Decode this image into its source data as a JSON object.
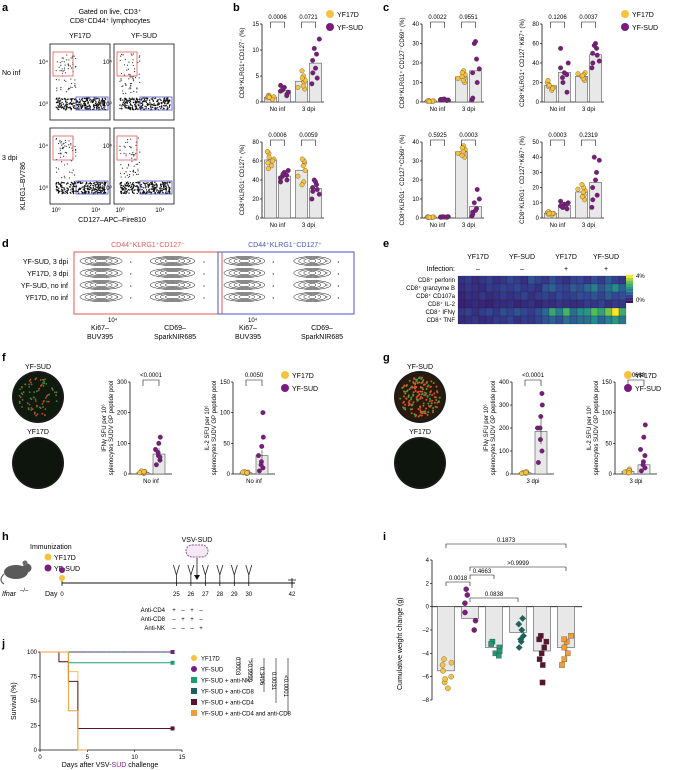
{
  "colors": {
    "yf17d": "#F7C23E",
    "yfsud": "#7A1B7E",
    "yfsud_nk": "#1E9A74",
    "yfsud_cd8": "#1F5F5C",
    "yfsud_cd4": "#5A1433",
    "yfsud_cd4cd8": "#F29D3A",
    "gate_red": "#E05A5A",
    "gate_blue": "#4A56C8",
    "axis": "#111111"
  },
  "legend": {
    "yf17d": "YF17D",
    "yfsud": "YF-SUD"
  },
  "panel_a": {
    "letter": "a",
    "title_line1": "Gated on live, CD3⁺",
    "title_line2": "CD8⁺CD44⁺ lymphocytes",
    "col1": "YF17D",
    "col2": "YF-SUD",
    "row1": "No inf",
    "row2": "3 dpi",
    "ylabel": "KLRG1–BV786",
    "xlabel": "CD127–APC–Fire810",
    "tick_hi": "10⁴",
    "tick_lo": "10⁰",
    "xtick_lo": "10⁰",
    "xtick_hi": "10⁴"
  },
  "panel_b": {
    "letter": "b",
    "groups": [
      "No inf",
      "3 dpi"
    ],
    "top": {
      "ylabel": "CD8⁺KLRG1⁺CD127⁻ (%)",
      "ticks": [
        "0",
        "5",
        "10",
        "15"
      ],
      "ymax": 15,
      "pvals": [
        "0.0006",
        "0.0721"
      ],
      "yf17d": {
        "no_inf": [
          0.6,
          1.0,
          1.3,
          0.8,
          1.2,
          0.5,
          1.0,
          0.9
        ],
        "dpi3": [
          2.5,
          3.8,
          4.2,
          5.0,
          6.0,
          3.1,
          4.6,
          2.8
        ]
      },
      "yfsud": {
        "no_inf": [
          1.5,
          2.3,
          2.8,
          1.9,
          3.2,
          2.1,
          2.6,
          1.2
        ],
        "dpi3": [
          3.5,
          5.6,
          8.0,
          9.2,
          10.3,
          12.1,
          4.6,
          6.5
        ]
      }
    },
    "bottom": {
      "ylabel": "CD8⁺KLRG1⁻CD127⁺ (%)",
      "ticks": [
        "0",
        "20",
        "40",
        "60",
        "80"
      ],
      "ymax": 80,
      "pvals": [
        "0.0006",
        "0.0059"
      ],
      "yf17d": {
        "no_inf": [
          55,
          62,
          68,
          70,
          52,
          60,
          58,
          64
        ],
        "dpi3": [
          58,
          60,
          50,
          38,
          35,
          55,
          62,
          44
        ]
      },
      "yfsud": {
        "no_inf": [
          40,
          44,
          48,
          50,
          38,
          42,
          46,
          45
        ],
        "dpi3": [
          20,
          28,
          32,
          35,
          40,
          25,
          30,
          38
        ]
      }
    }
  },
  "panel_c": {
    "letter": "c",
    "groups": [
      "No inf",
      "3 dpi"
    ],
    "p1": {
      "ylabel": "CD8⁺KLRG1⁺ CD127⁻CD69⁺ (%)",
      "ticks": [
        "0",
        "10",
        "20",
        "30",
        "40"
      ],
      "ymax": 40,
      "pvals": [
        "0.0022",
        "0.9551"
      ],
      "yf17d": {
        "no_inf": [
          0.3,
          0.5,
          0.7,
          0.4,
          0.6,
          0.5,
          0.8,
          0.3
        ],
        "dpi3": [
          10,
          12,
          14,
          16,
          13,
          11,
          15,
          12
        ]
      },
      "yfsud": {
        "no_inf": [
          0.8,
          1.2,
          1.5,
          1.0,
          1.3,
          1.1,
          1.4,
          0.9
        ],
        "dpi3": [
          1,
          2,
          15,
          22,
          30,
          17,
          10,
          31
        ]
      }
    },
    "p2": {
      "ylabel": "CD8⁺KLRG1⁺ CD127⁻Ki67⁺ (%)",
      "ticks": [
        "0",
        "20",
        "40",
        "60",
        "80"
      ],
      "ymax": 80,
      "pvals": [
        "0.1206",
        "0.0037"
      ],
      "yf17d": {
        "no_inf": [
          12,
          15,
          18,
          20,
          16,
          14,
          22,
          17
        ],
        "dpi3": [
          22,
          25,
          30,
          28,
          26,
          24,
          27,
          29
        ]
      },
      "yfsud": {
        "no_inf": [
          10,
          25,
          30,
          40,
          55,
          35,
          20,
          28
        ],
        "dpi3": [
          35,
          40,
          50,
          55,
          58,
          42,
          48,
          60
        ]
      }
    },
    "p3": {
      "ylabel": "CD8⁺KLRG1⁻ CD127⁺CD69⁺ (%)",
      "ticks": [
        "0",
        "10",
        "20",
        "30",
        "40"
      ],
      "ymax": 40,
      "pvals": [
        "0.5925",
        "0.0003"
      ],
      "yf17d": {
        "no_inf": [
          0.3,
          0.5,
          0.4,
          0.6,
          0.3,
          0.5,
          0.4,
          0.4
        ],
        "dpi3": [
          32,
          34,
          36,
          38,
          33,
          35,
          37,
          34
        ]
      },
      "yfsud": {
        "no_inf": [
          0.4,
          0.6,
          0.5,
          0.7,
          0.4,
          0.5,
          0.6,
          0.5
        ],
        "dpi3": [
          1,
          2,
          3,
          5,
          8,
          10,
          15,
          4
        ]
      }
    },
    "p4": {
      "ylabel": "CD8⁺KLRG1⁻ CD127⁺Ki67⁺ (%)",
      "ticks": [
        "0",
        "10",
        "20",
        "30",
        "40",
        "50"
      ],
      "ymax": 50,
      "pvals": [
        "0.0003",
        "0.2319"
      ],
      "yf17d": {
        "no_inf": [
          2,
          3,
          4,
          3.5,
          2.5,
          3,
          4,
          3
        ],
        "dpi3": [
          12,
          15,
          18,
          20,
          22,
          17,
          14,
          19
        ]
      },
      "yfsud": {
        "no_inf": [
          6,
          7,
          9,
          10,
          8,
          11,
          7,
          9
        ],
        "dpi3": [
          7,
          12,
          20,
          30,
          40,
          38,
          15,
          25
        ]
      }
    }
  },
  "panel_d": {
    "letter": "d",
    "rows": [
      "YF-SUD, 3 dpi",
      "YF17D, 3 dpi",
      "YF-SUD, no inf",
      "YF17D, no inf"
    ],
    "gate1": "CD44⁺KLRG1⁺CD127⁻",
    "gate2": "CD44⁺KLRG1⁻CD127⁺",
    "x1": "Ki67–",
    "x1b": "BUV395",
    "x2": "CD69–",
    "x2b": "SparkNIR685",
    "tick": "10⁴"
  },
  "panel_e": {
    "letter": "e",
    "cols": [
      "YF17D",
      "YF-SUD",
      "YF17D",
      "YF-SUD"
    ],
    "infection_label": "Infection:",
    "infection": [
      "–",
      "–",
      "+",
      "+"
    ],
    "rows": [
      "CD8⁺ perforin",
      "CD8⁺ granzyme B",
      "CD8⁺ CD107a",
      "CD8⁺ IL-2",
      "CD8⁺ IFNγ",
      "CD8⁺ TNF"
    ],
    "scale_max": "4%",
    "scale_min": "0%",
    "values": [
      [
        0.6,
        0.8,
        0.5,
        0.7,
        0.9,
        0.6,
        0.7,
        1.0,
        0.8,
        0.6,
        1.2,
        0.9,
        0.7,
        1.1,
        0.8,
        0.6,
        0.9,
        1.0,
        0.7,
        1.1,
        0.8,
        1.3,
        0.9,
        0.7
      ],
      [
        0.5,
        0.7,
        0.6,
        0.5,
        0.8,
        0.7,
        0.9,
        0.8,
        1.0,
        0.7,
        0.8,
        0.6,
        1.2,
        1.4,
        1.0,
        0.9,
        1.3,
        1.1,
        1.5,
        1.8,
        1.2,
        1.6,
        2.0,
        1.4
      ],
      [
        0.4,
        0.6,
        0.5,
        0.7,
        0.5,
        0.6,
        0.8,
        0.6,
        0.7,
        0.9,
        0.6,
        0.8,
        0.9,
        0.7,
        1.0,
        0.8,
        0.9,
        1.1,
        1.0,
        1.2,
        0.9,
        1.3,
        1.0,
        1.1
      ],
      [
        0.3,
        0.4,
        0.5,
        0.4,
        0.3,
        0.5,
        0.5,
        0.6,
        0.4,
        0.5,
        0.6,
        0.4,
        0.6,
        0.5,
        0.7,
        0.6,
        0.5,
        0.6,
        0.8,
        0.7,
        0.9,
        0.6,
        0.8,
        0.7
      ],
      [
        0.7,
        0.9,
        0.6,
        0.8,
        1.0,
        0.7,
        1.1,
        0.9,
        1.2,
        1.0,
        0.8,
        1.1,
        1.5,
        2.5,
        1.8,
        2.8,
        1.6,
        2.0,
        2.2,
        3.0,
        2.4,
        3.2,
        4.0,
        2.6
      ],
      [
        0.5,
        0.6,
        0.7,
        0.5,
        0.6,
        0.8,
        0.7,
        0.9,
        0.6,
        0.8,
        0.7,
        0.9,
        1.2,
        1.4,
        1.1,
        1.6,
        1.3,
        1.5,
        1.6,
        2.0,
        1.4,
        1.8,
        2.2,
        1.7
      ]
    ]
  },
  "panel_f": {
    "letter": "f",
    "well1": "YF-SUD",
    "well2": "YF17D",
    "p1": {
      "ylabel": "IFNγ SFU per 10⁶ splenocytes SUDV GP peptide pool",
      "ticks": [
        "0",
        "100",
        "200",
        "300"
      ],
      "ymax": 300,
      "pval": "<0.0001",
      "group": "No inf",
      "yf17d": [
        2,
        5,
        8,
        3,
        10,
        6,
        4,
        7
      ],
      "yfsud": [
        30,
        45,
        60,
        80,
        100,
        120,
        55,
        70
      ],
      "bar_yf17d": 5,
      "bar_yfsud": 65
    },
    "p2": {
      "ylabel": "IL-2 SFU per 10⁶ splenocytes SUDV GP peptide pool",
      "ticks": [
        "0",
        "50",
        "100",
        "150"
      ],
      "ymax": 150,
      "pval": "0.0050",
      "group": "No inf",
      "yf17d": [
        1,
        2,
        3,
        2,
        4,
        1,
        3,
        2
      ],
      "yfsud": [
        5,
        10,
        20,
        30,
        45,
        60,
        100,
        15
      ],
      "bar_yf17d": 2,
      "bar_yfsud": 30
    }
  },
  "panel_g": {
    "letter": "g",
    "well1": "YF-SUD",
    "well2": "YF17D",
    "p1": {
      "ylabel": "IFNγ SFU per 10⁶ splenocytes SUDV GP peptide pool",
      "ticks": [
        "0",
        "100",
        "200",
        "300",
        "400"
      ],
      "ymax": 400,
      "pval": "<0.0001",
      "group": "3 dpi",
      "yf17d": [
        3,
        5,
        8,
        4,
        6,
        10,
        2,
        7
      ],
      "yfsud": [
        50,
        100,
        150,
        200,
        250,
        300,
        350,
        200
      ],
      "bar_yf17d": 5,
      "bar_yfsud": 185
    },
    "p2": {
      "ylabel": "IL-2 SFU per 10⁶ splenocytes SUDV GP peptide pool",
      "ticks": [
        "0",
        "50",
        "100",
        "150"
      ],
      "ymax": 150,
      "pval": "0.0668",
      "group": "3 dpi",
      "yf17d": [
        2,
        3,
        5,
        8,
        4,
        6,
        3,
        2
      ],
      "yfsud": [
        5,
        10,
        20,
        40,
        60,
        80,
        30,
        15
      ],
      "bar_yf17d": 4,
      "bar_yfsud": 15
    }
  },
  "panel_h": {
    "letter": "h",
    "immunization": "Immunization",
    "leg1": "YF17D",
    "leg2": "YF-SUD",
    "challenge": "VSV-SUD",
    "mouse": "Ifnar",
    "mouse_sup": "–/–",
    "day_label": "Day",
    "days": [
      "0",
      "25",
      "26",
      "27",
      "28",
      "29",
      "30",
      "42"
    ],
    "treat": [
      {
        "name": "Anti-CD4",
        "marks": [
          "+",
          "–",
          "+",
          "–"
        ]
      },
      {
        "name": "Anti-CD8",
        "marks": [
          "–",
          "+",
          "+",
          "–"
        ]
      },
      {
        "name": "Anti-NK",
        "marks": [
          "–",
          "–",
          "–",
          "+"
        ]
      }
    ]
  },
  "panel_i": {
    "letter": "i",
    "ylabel": "Cumulative weight change (g)",
    "ticks": [
      "4",
      "2",
      "0",
      "–2",
      "–4",
      "–6",
      "–8"
    ],
    "pvals": [
      "0.1873",
      "0.0018",
      ">0.9999",
      "0.4663",
      "0.0838"
    ],
    "bars": [
      -5.5,
      -1.0,
      -3.5,
      -2.2,
      -3.8,
      -3.5
    ],
    "points": [
      [
        -4.5,
        -5,
        -6,
        -6.5,
        -7,
        -5.5,
        -4.8,
        -6.2
      ],
      [
        -2,
        -0.5,
        1,
        1.5,
        -1.2,
        0.3
      ],
      [
        -3,
        -3.5,
        -4,
        -3.8,
        -3.2,
        -4.2
      ],
      [
        -1,
        -2,
        -2.5,
        -3,
        -1.5,
        -2.8,
        -3.5
      ],
      [
        -2.5,
        -3.5,
        -4.5,
        -5,
        -3,
        -6.5,
        -4,
        -2.8
      ],
      [
        -2.5,
        -3,
        -4,
        -4.5,
        -5,
        -3.5,
        -2.8
      ]
    ]
  },
  "panel_j": {
    "letter": "j",
    "ylabel": "Survival (%)",
    "xlabel_pre": "Days after VSV-",
    "xlabel_mid": "SUD",
    "xlabel_post": " challenge",
    "yticks": [
      "0",
      "25",
      "50",
      "75",
      "100"
    ],
    "xticks": [
      "0",
      "5",
      "10",
      "15"
    ],
    "legend": [
      "YF17D",
      "YF-SUD",
      "YF-SUD + anti-NK",
      "YF-SUD + anti-CD8",
      "YF-SUD + anti-CD4",
      "YF-SUD + anti-CD4 and anti-CD8"
    ],
    "pvals": [
      "0.0003",
      ">0.9999",
      "0.3496",
      "0.0031",
      "<0.0001"
    ]
  }
}
